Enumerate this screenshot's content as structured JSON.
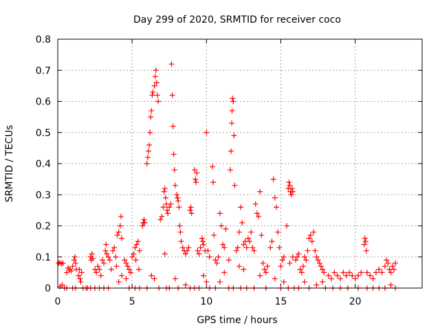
{
  "chart_data": {
    "type": "scatter",
    "title": "Day 299 of 2020, SRMTID for receiver coco",
    "xlabel": "GPS time / hours",
    "ylabel": "SRMTID / TECUs",
    "xlim": [
      0,
      24.5
    ],
    "ylim": [
      0,
      0.8
    ],
    "xticks": [
      0,
      5,
      10,
      15,
      20
    ],
    "xtick_labels": [
      "0",
      "5",
      "10",
      "15",
      "20"
    ],
    "yticks": [
      0,
      0.1,
      0.2,
      0.3,
      0.4,
      0.5,
      0.6,
      0.7,
      0.8
    ],
    "ytick_labels": [
      "0",
      "0.1",
      "0.2",
      "0.3",
      "0.4",
      "0.5",
      "0.6",
      "0.7",
      "0.8"
    ],
    "grid": true,
    "marker": "+",
    "marker_color": "#ff0000",
    "series": [
      {
        "name": "SRMTID",
        "points": [
          [
            0.05,
            0.08
          ],
          [
            0.15,
            0.082
          ],
          [
            0.25,
            0.078
          ],
          [
            0.35,
            0.08
          ],
          [
            0.15,
            0.005
          ],
          [
            0.3,
            0.01
          ],
          [
            0.45,
            0.0
          ],
          [
            0.6,
            0.0
          ],
          [
            0.6,
            0.05
          ],
          [
            0.7,
            0.065
          ],
          [
            0.8,
            0.06
          ],
          [
            0.9,
            0.055
          ],
          [
            1.0,
            0.07
          ],
          [
            1.1,
            0.09
          ],
          [
            1.15,
            0.1
          ],
          [
            1.2,
            0.08
          ],
          [
            1.25,
            0.06
          ],
          [
            1.0,
            0.0
          ],
          [
            1.2,
            0.0
          ],
          [
            1.4,
            0.04
          ],
          [
            1.45,
            0.06
          ],
          [
            1.5,
            0.03
          ],
          [
            1.55,
            0.02
          ],
          [
            1.6,
            0.05
          ],
          [
            1.7,
            0.0
          ],
          [
            1.9,
            0.0
          ],
          [
            2.0,
            0.0
          ],
          [
            2.2,
            0.1
          ],
          [
            2.25,
            0.09
          ],
          [
            2.3,
            0.11
          ],
          [
            2.35,
            0.095
          ],
          [
            2.5,
            0.06
          ],
          [
            2.6,
            0.05
          ],
          [
            2.7,
            0.07
          ],
          [
            2.8,
            0.06
          ],
          [
            2.9,
            0.04
          ],
          [
            2.2,
            0.0
          ],
          [
            2.5,
            0.0
          ],
          [
            2.8,
            0.0
          ],
          [
            3.0,
            0.09
          ],
          [
            3.1,
            0.08
          ],
          [
            3.2,
            0.12
          ],
          [
            3.25,
            0.14
          ],
          [
            3.3,
            0.11
          ],
          [
            3.4,
            0.1
          ],
          [
            3.5,
            0.09
          ],
          [
            3.6,
            0.06
          ],
          [
            3.7,
            0.12
          ],
          [
            3.8,
            0.13
          ],
          [
            3.9,
            0.1
          ],
          [
            3.95,
            0.07
          ],
          [
            3.1,
            0.0
          ],
          [
            3.4,
            0.0
          ],
          [
            4.0,
            0.17
          ],
          [
            4.1,
            0.18
          ],
          [
            4.2,
            0.2
          ],
          [
            4.25,
            0.23
          ],
          [
            4.3,
            0.16
          ],
          [
            4.1,
            0.02
          ],
          [
            4.3,
            0.04
          ],
          [
            4.5,
            0.09
          ],
          [
            4.6,
            0.08
          ],
          [
            4.7,
            0.07
          ],
          [
            4.8,
            0.06
          ],
          [
            4.6,
            0.03
          ],
          [
            4.8,
            0.0
          ],
          [
            4.9,
            0.05
          ],
          [
            5.0,
            0.1
          ],
          [
            5.1,
            0.11
          ],
          [
            5.2,
            0.13
          ],
          [
            5.25,
            0.09
          ],
          [
            5.3,
            0.14
          ],
          [
            5.4,
            0.15
          ],
          [
            5.5,
            0.12
          ],
          [
            5.45,
            0.06
          ],
          [
            5.2,
            0.0
          ],
          [
            5.5,
            0.0
          ],
          [
            5.7,
            0.2
          ],
          [
            5.75,
            0.21
          ],
          [
            5.8,
            0.22
          ],
          [
            5.85,
            0.21
          ],
          [
            6.0,
            0.4
          ],
          [
            6.05,
            0.42
          ],
          [
            6.1,
            0.44
          ],
          [
            6.15,
            0.46
          ],
          [
            6.2,
            0.5
          ],
          [
            6.25,
            0.55
          ],
          [
            6.3,
            0.57
          ],
          [
            6.35,
            0.62
          ],
          [
            6.4,
            0.63
          ],
          [
            6.5,
            0.65
          ],
          [
            6.55,
            0.68
          ],
          [
            6.6,
            0.7
          ],
          [
            6.65,
            0.66
          ],
          [
            6.7,
            0.62
          ],
          [
            6.75,
            0.6
          ],
          [
            6.3,
            0.04
          ],
          [
            6.5,
            0.03
          ],
          [
            6.8,
            0.0
          ],
          [
            6.0,
            0.0
          ],
          [
            6.9,
            0.22
          ],
          [
            7.0,
            0.23
          ],
          [
            7.1,
            0.26
          ],
          [
            7.15,
            0.31
          ],
          [
            7.2,
            0.32
          ],
          [
            7.25,
            0.29
          ],
          [
            7.3,
            0.27
          ],
          [
            7.35,
            0.25
          ],
          [
            7.4,
            0.24
          ],
          [
            7.5,
            0.26
          ],
          [
            7.6,
            0.27
          ],
          [
            7.2,
            0.11
          ],
          [
            7.3,
            0.0
          ],
          [
            7.5,
            0.0
          ],
          [
            7.65,
            0.72
          ],
          [
            7.7,
            0.62
          ],
          [
            7.75,
            0.52
          ],
          [
            7.8,
            0.43
          ],
          [
            7.85,
            0.38
          ],
          [
            7.9,
            0.33
          ],
          [
            8.0,
            0.3
          ],
          [
            8.05,
            0.29
          ],
          [
            8.1,
            0.28
          ],
          [
            8.15,
            0.26
          ],
          [
            8.2,
            0.2
          ],
          [
            8.25,
            0.18
          ],
          [
            8.3,
            0.15
          ],
          [
            7.9,
            0.03
          ],
          [
            8.1,
            0.0
          ],
          [
            8.4,
            0.13
          ],
          [
            8.5,
            0.12
          ],
          [
            8.6,
            0.11
          ],
          [
            8.7,
            0.12
          ],
          [
            8.8,
            0.13
          ],
          [
            8.9,
            0.25
          ],
          [
            8.95,
            0.26
          ],
          [
            9.0,
            0.24
          ],
          [
            9.2,
            0.38
          ],
          [
            9.25,
            0.35
          ],
          [
            9.3,
            0.34
          ],
          [
            9.35,
            0.37
          ],
          [
            8.6,
            0.01
          ],
          [
            8.9,
            0.0
          ],
          [
            9.2,
            0.0
          ],
          [
            9.4,
            0.12
          ],
          [
            9.5,
            0.11
          ],
          [
            9.6,
            0.13
          ],
          [
            9.7,
            0.16
          ],
          [
            9.75,
            0.15
          ],
          [
            9.8,
            0.14
          ],
          [
            9.9,
            0.12
          ],
          [
            10.0,
            0.5
          ],
          [
            10.1,
            0.12
          ],
          [
            10.2,
            0.1
          ],
          [
            9.8,
            0.04
          ],
          [
            10.0,
            0.02
          ],
          [
            9.5,
            0.0
          ],
          [
            10.2,
            0.0
          ],
          [
            10.4,
            0.39
          ],
          [
            10.45,
            0.34
          ],
          [
            10.5,
            0.17
          ],
          [
            10.6,
            0.09
          ],
          [
            10.7,
            0.08
          ],
          [
            10.8,
            0.1
          ],
          [
            10.9,
            0.24
          ],
          [
            11.0,
            0.2
          ],
          [
            11.1,
            0.14
          ],
          [
            11.2,
            0.13
          ],
          [
            11.3,
            0.19
          ],
          [
            10.6,
            0.0
          ],
          [
            10.9,
            0.02
          ],
          [
            11.2,
            0.05
          ],
          [
            11.5,
            0.09
          ],
          [
            11.6,
            0.38
          ],
          [
            11.65,
            0.44
          ],
          [
            11.7,
            0.53
          ],
          [
            11.72,
            0.57
          ],
          [
            11.75,
            0.61
          ],
          [
            11.8,
            0.6
          ],
          [
            11.85,
            0.49
          ],
          [
            11.9,
            0.33
          ],
          [
            11.5,
            0.0
          ],
          [
            11.8,
            0.0
          ],
          [
            12.0,
            0.12
          ],
          [
            12.1,
            0.13
          ],
          [
            12.2,
            0.18
          ],
          [
            12.3,
            0.26
          ],
          [
            12.4,
            0.21
          ],
          [
            12.5,
            0.14
          ],
          [
            12.6,
            0.15
          ],
          [
            12.7,
            0.13
          ],
          [
            12.8,
            0.16
          ],
          [
            12.9,
            0.15
          ],
          [
            12.2,
            0.07
          ],
          [
            12.5,
            0.06
          ],
          [
            12.3,
            0.0
          ],
          [
            12.7,
            0.0
          ],
          [
            13.0,
            0.18
          ],
          [
            13.1,
            0.13
          ],
          [
            13.2,
            0.12
          ],
          [
            13.3,
            0.27
          ],
          [
            13.4,
            0.24
          ],
          [
            13.5,
            0.23
          ],
          [
            13.6,
            0.31
          ],
          [
            13.7,
            0.17
          ],
          [
            13.8,
            0.08
          ],
          [
            13.9,
            0.06
          ],
          [
            14.0,
            0.05
          ],
          [
            14.1,
            0.07
          ],
          [
            13.2,
            0.0
          ],
          [
            13.6,
            0.04
          ],
          [
            14.0,
            0.0
          ],
          [
            14.3,
            0.13
          ],
          [
            14.4,
            0.15
          ],
          [
            14.5,
            0.35
          ],
          [
            14.6,
            0.29
          ],
          [
            14.7,
            0.26
          ],
          [
            14.8,
            0.18
          ],
          [
            14.9,
            0.13
          ],
          [
            15.0,
            0.07
          ],
          [
            15.1,
            0.09
          ],
          [
            15.2,
            0.1
          ],
          [
            14.6,
            0.03
          ],
          [
            15.0,
            0.0
          ],
          [
            15.2,
            0.02
          ],
          [
            15.4,
            0.2
          ],
          [
            15.5,
            0.32
          ],
          [
            15.55,
            0.34
          ],
          [
            15.6,
            0.33
          ],
          [
            15.65,
            0.31
          ],
          [
            15.7,
            0.3
          ],
          [
            15.75,
            0.32
          ],
          [
            15.8,
            0.31
          ],
          [
            15.6,
            0.08
          ],
          [
            15.8,
            0.1
          ],
          [
            15.5,
            0.0
          ],
          [
            15.9,
            0.0
          ],
          [
            16.0,
            0.09
          ],
          [
            16.1,
            0.1
          ],
          [
            16.2,
            0.11
          ],
          [
            16.3,
            0.06
          ],
          [
            16.4,
            0.05
          ],
          [
            16.5,
            0.07
          ],
          [
            16.6,
            0.1
          ],
          [
            16.7,
            0.09
          ],
          [
            16.8,
            0.12
          ],
          [
            16.9,
            0.16
          ],
          [
            17.0,
            0.17
          ],
          [
            17.1,
            0.15
          ],
          [
            16.2,
            0.0
          ],
          [
            16.6,
            0.02
          ],
          [
            16.9,
            0.0
          ],
          [
            17.2,
            0.18
          ],
          [
            17.3,
            0.12
          ],
          [
            17.4,
            0.1
          ],
          [
            17.5,
            0.09
          ],
          [
            17.6,
            0.08
          ],
          [
            17.7,
            0.07
          ],
          [
            17.8,
            0.06
          ],
          [
            17.9,
            0.05
          ],
          [
            17.4,
            0.01
          ],
          [
            17.8,
            0.02
          ],
          [
            18.0,
            0.0
          ],
          [
            18.2,
            0.04
          ],
          [
            18.4,
            0.03
          ],
          [
            18.6,
            0.05
          ],
          [
            18.8,
            0.04
          ],
          [
            19.0,
            0.03
          ],
          [
            19.2,
            0.05
          ],
          [
            19.4,
            0.04
          ],
          [
            19.6,
            0.05
          ],
          [
            19.8,
            0.04
          ],
          [
            18.5,
            0.0
          ],
          [
            19.0,
            0.0
          ],
          [
            19.5,
            0.0
          ],
          [
            20.0,
            0.03
          ],
          [
            20.2,
            0.04
          ],
          [
            20.4,
            0.05
          ],
          [
            20.6,
            0.14
          ],
          [
            20.65,
            0.16
          ],
          [
            20.7,
            0.15
          ],
          [
            20.75,
            0.12
          ],
          [
            20.8,
            0.05
          ],
          [
            21.0,
            0.04
          ],
          [
            21.2,
            0.03
          ],
          [
            20.2,
            0.0
          ],
          [
            20.8,
            0.0
          ],
          [
            21.2,
            0.0
          ],
          [
            21.4,
            0.05
          ],
          [
            21.6,
            0.06
          ],
          [
            21.8,
            0.05
          ],
          [
            22.0,
            0.07
          ],
          [
            22.1,
            0.09
          ],
          [
            22.2,
            0.08
          ],
          [
            22.3,
            0.06
          ],
          [
            22.4,
            0.05
          ],
          [
            22.5,
            0.07
          ],
          [
            22.6,
            0.06
          ],
          [
            22.7,
            0.08
          ],
          [
            21.6,
            0.0
          ],
          [
            22.0,
            0.0
          ],
          [
            22.4,
            0.01
          ],
          [
            22.7,
            0.0
          ]
        ]
      }
    ]
  }
}
